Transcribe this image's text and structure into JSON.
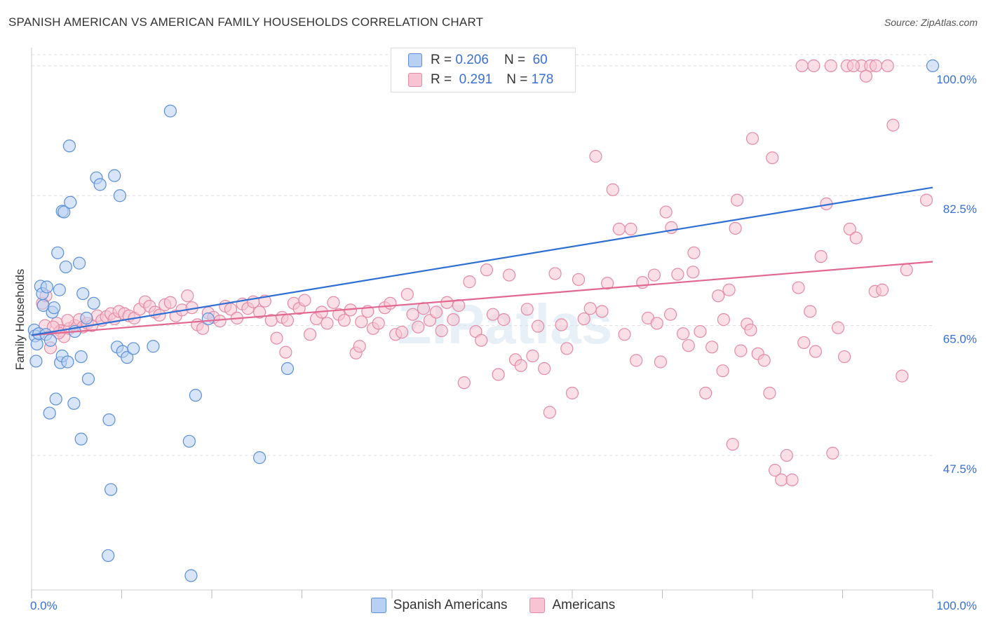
{
  "header": {
    "title": "SPANISH AMERICAN VS AMERICAN FAMILY HOUSEHOLDS CORRELATION CHART",
    "source": "Source: ZipAtlas.com"
  },
  "watermark": "ZIPatlas",
  "legend": {
    "rows": [
      {
        "r_label": "R =",
        "r_value": "0.206",
        "n_label": "N =",
        "n_value": "60"
      },
      {
        "r_label": "R =",
        "r_value": "0.291",
        "n_label": "N =",
        "n_value": "178"
      }
    ]
  },
  "bottom_legend": {
    "items": [
      {
        "label": "Spanish Americans"
      },
      {
        "label": "Americans"
      }
    ]
  },
  "colors": {
    "blue_fill": "#b8d0f2",
    "blue_stroke": "#5b8fd9",
    "blue_line": "#2f6fd4",
    "pink_fill": "#f8c4d3",
    "pink_stroke": "#e38aa5",
    "pink_line": "#e2688f",
    "tick_label": "#3a6fd8",
    "grid": "#dddddd"
  },
  "chart_data": {
    "type": "scatter",
    "title": "SPANISH AMERICAN VS AMERICAN FAMILY HOUSEHOLDS CORRELATION CHART",
    "xlabel": "",
    "ylabel": "Family Households",
    "xlim": [
      0,
      100
    ],
    "ylim": [
      30.5,
      101.5
    ],
    "x_tick_labels": [
      "0.0%",
      "100.0%"
    ],
    "y_ticks": [
      47.5,
      65.0,
      82.5,
      100.0
    ],
    "y_tick_labels": [
      "47.5%",
      "65.0%",
      "82.5%",
      "100.0%"
    ],
    "grid": true,
    "legend_position": "top-center",
    "series": [
      {
        "name": "Spanish Americans",
        "r": 0.206,
        "n": 60,
        "trend": [
          [
            0,
            63.7
          ],
          [
            100,
            83.6
          ]
        ],
        "points": [
          [
            0.3,
            64.4
          ],
          [
            0.4,
            63.6
          ],
          [
            0.5,
            60.2
          ],
          [
            0.6,
            62.5
          ],
          [
            0.8,
            63.9
          ],
          [
            1.0,
            70.3
          ],
          [
            1.2,
            69.3
          ],
          [
            1.3,
            67.7
          ],
          [
            1.6,
            63.8
          ],
          [
            1.7,
            70.2
          ],
          [
            2.0,
            53.2
          ],
          [
            2.1,
            63.0
          ],
          [
            2.3,
            66.8
          ],
          [
            2.5,
            67.4
          ],
          [
            2.7,
            55.1
          ],
          [
            2.9,
            74.8
          ],
          [
            3.1,
            69.8
          ],
          [
            3.4,
            80.4
          ],
          [
            3.2,
            60.0
          ],
          [
            3.4,
            60.9
          ],
          [
            3.6,
            80.3
          ],
          [
            3.8,
            72.9
          ],
          [
            4.0,
            60.1
          ],
          [
            4.2,
            89.2
          ],
          [
            4.3,
            81.6
          ],
          [
            4.7,
            54.5
          ],
          [
            4.8,
            64.2
          ],
          [
            5.3,
            73.4
          ],
          [
            5.5,
            60.8
          ],
          [
            5.5,
            49.7
          ],
          [
            5.7,
            69.3
          ],
          [
            6.1,
            66.0
          ],
          [
            6.3,
            57.8
          ],
          [
            6.9,
            68.0
          ],
          [
            7.2,
            84.9
          ],
          [
            7.6,
            84.0
          ],
          [
            8.5,
            34.0
          ],
          [
            8.6,
            52.3
          ],
          [
            8.8,
            42.9
          ],
          [
            9.2,
            85.2
          ],
          [
            9.5,
            62.1
          ],
          [
            9.8,
            82.5
          ],
          [
            10.1,
            61.5
          ],
          [
            10.6,
            60.7
          ],
          [
            11.3,
            61.9
          ],
          [
            13.5,
            62.2
          ],
          [
            15.4,
            93.9
          ],
          [
            17.5,
            49.4
          ],
          [
            17.7,
            31.3
          ],
          [
            18.2,
            55.6
          ],
          [
            19.6,
            65.9
          ],
          [
            25.3,
            47.2
          ],
          [
            28.4,
            59.2
          ],
          [
            100.0,
            100.0
          ]
        ]
      },
      {
        "name": "Americans",
        "r": 0.291,
        "n": 178,
        "trend": [
          [
            0,
            63.7
          ],
          [
            100,
            73.6
          ]
        ],
        "points": [
          [
            1.2,
            68.0
          ],
          [
            1.6,
            69.0
          ],
          [
            2.1,
            62.0
          ],
          [
            2.8,
            65.3
          ],
          [
            3.2,
            64.3
          ],
          [
            3.6,
            63.5
          ],
          [
            4.2,
            64.6
          ],
          [
            4.8,
            65.0
          ],
          [
            5.3,
            65.8
          ],
          [
            5.7,
            64.8
          ],
          [
            6.2,
            65.3
          ],
          [
            6.7,
            65.0
          ],
          [
            7.3,
            66.3
          ],
          [
            7.8,
            65.7
          ],
          [
            8.3,
            66.2
          ],
          [
            8.8,
            66.6
          ],
          [
            9.2,
            65.9
          ],
          [
            9.7,
            66.9
          ],
          [
            10.3,
            66.6
          ],
          [
            10.8,
            66.3
          ],
          [
            11.4,
            66.0
          ],
          [
            12.0,
            67.2
          ],
          [
            12.6,
            68.2
          ],
          [
            13.1,
            67.6
          ],
          [
            13.7,
            66.8
          ],
          [
            14.2,
            66.4
          ],
          [
            14.8,
            67.8
          ],
          [
            15.4,
            68.1
          ],
          [
            16.0,
            66.3
          ],
          [
            16.7,
            67.1
          ],
          [
            17.3,
            69.0
          ],
          [
            17.8,
            67.4
          ],
          [
            18.4,
            65.1
          ],
          [
            19.0,
            64.6
          ],
          [
            19.6,
            66.7
          ],
          [
            20.2,
            66.1
          ],
          [
            20.9,
            65.6
          ],
          [
            21.5,
            67.6
          ],
          [
            22.1,
            67.2
          ],
          [
            22.8,
            66.0
          ],
          [
            23.4,
            67.9
          ],
          [
            24.0,
            67.3
          ],
          [
            24.6,
            68.2
          ],
          [
            25.3,
            66.8
          ],
          [
            25.9,
            68.3
          ],
          [
            26.6,
            65.7
          ],
          [
            27.2,
            63.3
          ],
          [
            27.8,
            66.1
          ],
          [
            28.2,
            61.4
          ],
          [
            28.4,
            65.7
          ],
          [
            29.1,
            68.0
          ],
          [
            29.7,
            67.3
          ],
          [
            30.3,
            68.4
          ],
          [
            30.9,
            63.8
          ],
          [
            31.6,
            65.9
          ],
          [
            32.2,
            66.8
          ],
          [
            32.8,
            65.3
          ],
          [
            33.5,
            68.1
          ],
          [
            34.1,
            66.5
          ],
          [
            34.7,
            65.7
          ],
          [
            35.4,
            67.1
          ],
          [
            36.0,
            61.3
          ],
          [
            36.4,
            62.2
          ],
          [
            36.6,
            65.5
          ],
          [
            37.3,
            66.9
          ],
          [
            37.9,
            64.6
          ],
          [
            38.5,
            65.3
          ],
          [
            39.2,
            67.4
          ],
          [
            39.8,
            68.0
          ],
          [
            40.4,
            63.8
          ],
          [
            41.1,
            64.1
          ],
          [
            41.7,
            69.2
          ],
          [
            42.3,
            66.5
          ],
          [
            42.9,
            64.8
          ],
          [
            43.5,
            67.3
          ],
          [
            44.2,
            65.7
          ],
          [
            44.9,
            66.8
          ],
          [
            45.5,
            64.3
          ],
          [
            46.1,
            68.1
          ],
          [
            46.8,
            65.8
          ],
          [
            47.4,
            67.7
          ],
          [
            48.0,
            57.3
          ],
          [
            48.6,
            70.9
          ],
          [
            49.3,
            64.2
          ],
          [
            49.9,
            63.0
          ],
          [
            50.5,
            72.5
          ],
          [
            51.2,
            66.5
          ],
          [
            51.8,
            58.4
          ],
          [
            52.4,
            65.8
          ],
          [
            53.0,
            71.8
          ],
          [
            53.7,
            60.4
          ],
          [
            54.3,
            59.6
          ],
          [
            55.0,
            67.2
          ],
          [
            55.6,
            60.9
          ],
          [
            56.2,
            64.9
          ],
          [
            56.9,
            59.2
          ],
          [
            57.5,
            53.3
          ],
          [
            58.1,
            72.0
          ],
          [
            58.8,
            65.1
          ],
          [
            59.4,
            61.9
          ],
          [
            60.0,
            55.9
          ],
          [
            60.7,
            71.2
          ],
          [
            61.3,
            65.9
          ],
          [
            62.0,
            67.3
          ],
          [
            62.6,
            87.8
          ],
          [
            63.3,
            66.9
          ],
          [
            63.9,
            70.7
          ],
          [
            64.5,
            83.3
          ],
          [
            65.2,
            78.0
          ],
          [
            65.8,
            63.8
          ],
          [
            66.5,
            78.0
          ],
          [
            67.1,
            60.3
          ],
          [
            67.8,
            70.8
          ],
          [
            68.4,
            66.0
          ],
          [
            69.1,
            71.8
          ],
          [
            69.8,
            60.1
          ],
          [
            70.4,
            80.3
          ],
          [
            71.0,
            78.2
          ],
          [
            71.7,
            71.9
          ],
          [
            72.3,
            63.9
          ],
          [
            72.9,
            62.3
          ],
          [
            73.5,
            74.8
          ],
          [
            74.2,
            64.2
          ],
          [
            74.8,
            55.9
          ],
          [
            75.5,
            62.1
          ],
          [
            76.2,
            69.0
          ],
          [
            76.8,
            65.8
          ],
          [
            77.4,
            69.8
          ],
          [
            78.1,
            78.1
          ],
          [
            78.7,
            61.6
          ],
          [
            79.4,
            65.2
          ],
          [
            80.0,
            90.2
          ],
          [
            80.6,
            61.2
          ],
          [
            81.3,
            60.3
          ],
          [
            81.9,
            55.9
          ],
          [
            82.5,
            45.5
          ],
          [
            83.2,
            44.2
          ],
          [
            83.8,
            47.5
          ],
          [
            84.4,
            44.2
          ],
          [
            85.1,
            70.1
          ],
          [
            85.7,
            62.7
          ],
          [
            86.4,
            66.9
          ],
          [
            87.0,
            61.5
          ],
          [
            87.6,
            74.3
          ],
          [
            88.2,
            81.4
          ],
          [
            88.9,
            47.8
          ],
          [
            89.5,
            64.7
          ],
          [
            90.2,
            60.8
          ],
          [
            90.8,
            78.0
          ],
          [
            91.5,
            76.8
          ],
          [
            92.1,
            100.0
          ],
          [
            93.1,
            100.0
          ],
          [
            93.7,
            100.0
          ],
          [
            93.6,
            69.6
          ],
          [
            95.0,
            100.0
          ],
          [
            95.6,
            92.0
          ],
          [
            97.1,
            72.5
          ],
          [
            99.3,
            81.9
          ],
          [
            69.4,
            65.3
          ],
          [
            70.9,
            66.5
          ],
          [
            73.4,
            72.2
          ],
          [
            76.7,
            58.9
          ],
          [
            77.8,
            49.0
          ],
          [
            78.3,
            81.9
          ],
          [
            79.8,
            64.4
          ],
          [
            82.2,
            87.6
          ],
          [
            85.5,
            100.0
          ],
          [
            86.8,
            100.0
          ],
          [
            88.7,
            100.0
          ],
          [
            90.5,
            100.0
          ],
          [
            91.2,
            100.0
          ],
          [
            92.6,
            98.6
          ],
          [
            94.4,
            69.8
          ],
          [
            96.6,
            58.2
          ],
          [
            1.5,
            65.0
          ],
          [
            3.0,
            64.0
          ],
          [
            2.4,
            64.8
          ],
          [
            4.0,
            65.7
          ]
        ]
      }
    ]
  }
}
